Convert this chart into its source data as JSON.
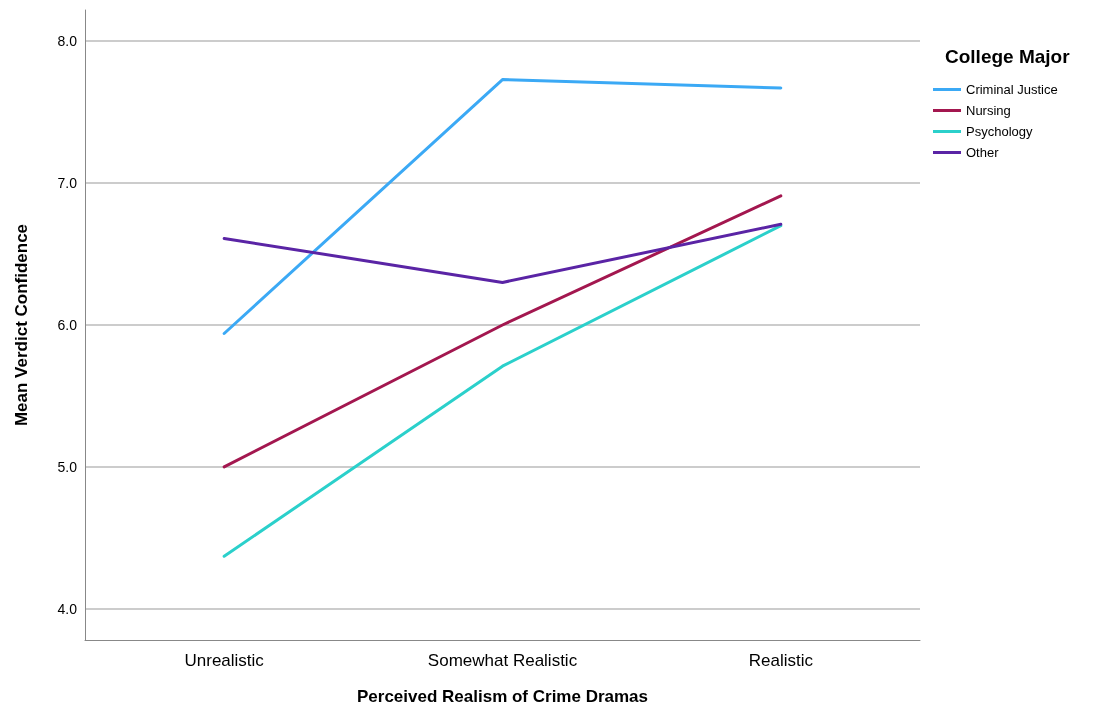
{
  "chart_data": {
    "type": "line",
    "xlabel": "Perceived Realism of Crime Dramas",
    "ylabel": "Mean Verdict Confidence",
    "legend_title": "College Major",
    "categories": [
      "Unrealistic",
      "Somewhat Realistic",
      "Realistic"
    ],
    "series": [
      {
        "name": "Criminal Justice",
        "color": "#3ba9f5",
        "values": [
          5.94,
          7.73,
          7.67
        ]
      },
      {
        "name": "Nursing",
        "color": "#a3174f",
        "values": [
          5.0,
          6.0,
          6.91
        ]
      },
      {
        "name": "Psychology",
        "color": "#2bd0cb",
        "values": [
          4.37,
          5.71,
          6.7
        ]
      },
      {
        "name": "Other",
        "color": "#5a24a5",
        "values": [
          6.61,
          6.3,
          6.71
        ]
      }
    ],
    "ylim": [
      3.78,
      8.22
    ],
    "yticks": [
      {
        "value": 4,
        "label": "4.0"
      },
      {
        "value": 5,
        "label": "5.0"
      },
      {
        "value": 6,
        "label": "6.0"
      },
      {
        "value": 7,
        "label": "7.0"
      },
      {
        "value": 8,
        "label": "8.0"
      }
    ],
    "grid": "y",
    "legend": "top right",
    "marker": "none",
    "line_style": "solid"
  }
}
